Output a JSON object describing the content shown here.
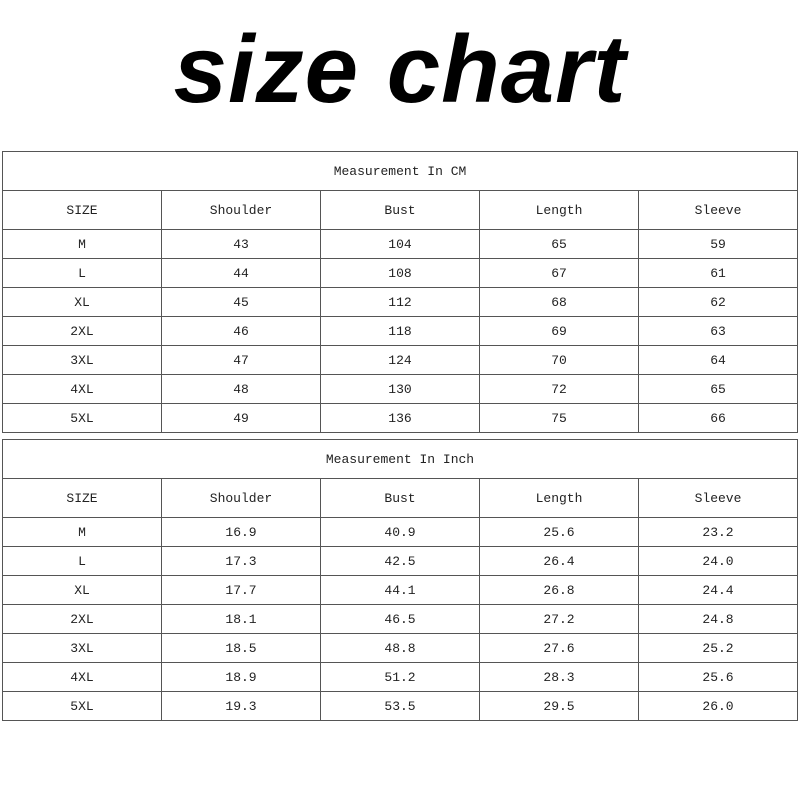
{
  "title": "size chart",
  "tables": [
    {
      "caption": "Measurement In CM",
      "headers": [
        "SIZE",
        "Shoulder",
        "Bust",
        "Length",
        "Sleeve"
      ],
      "rows": [
        [
          "M",
          "43",
          "104",
          "65",
          "59"
        ],
        [
          "L",
          "44",
          "108",
          "67",
          "61"
        ],
        [
          "XL",
          "45",
          "112",
          "68",
          "62"
        ],
        [
          "2XL",
          "46",
          "118",
          "69",
          "63"
        ],
        [
          "3XL",
          "47",
          "124",
          "70",
          "64"
        ],
        [
          "4XL",
          "48",
          "130",
          "72",
          "65"
        ],
        [
          "5XL",
          "49",
          "136",
          "75",
          "66"
        ]
      ]
    },
    {
      "caption": "Measurement In Inch",
      "headers": [
        "SIZE",
        "Shoulder",
        "Bust",
        "Length",
        "Sleeve"
      ],
      "rows": [
        [
          "M",
          "16.9",
          "40.9",
          "25.6",
          "23.2"
        ],
        [
          "L",
          "17.3",
          "42.5",
          "26.4",
          "24.0"
        ],
        [
          "XL",
          "17.7",
          "44.1",
          "26.8",
          "24.4"
        ],
        [
          "2XL",
          "18.1",
          "46.5",
          "27.2",
          "24.8"
        ],
        [
          "3XL",
          "18.5",
          "48.8",
          "27.6",
          "25.2"
        ],
        [
          "4XL",
          "18.9",
          "51.2",
          "28.3",
          "25.6"
        ],
        [
          "5XL",
          "19.3",
          "53.5",
          "29.5",
          "26.0"
        ]
      ]
    }
  ]
}
